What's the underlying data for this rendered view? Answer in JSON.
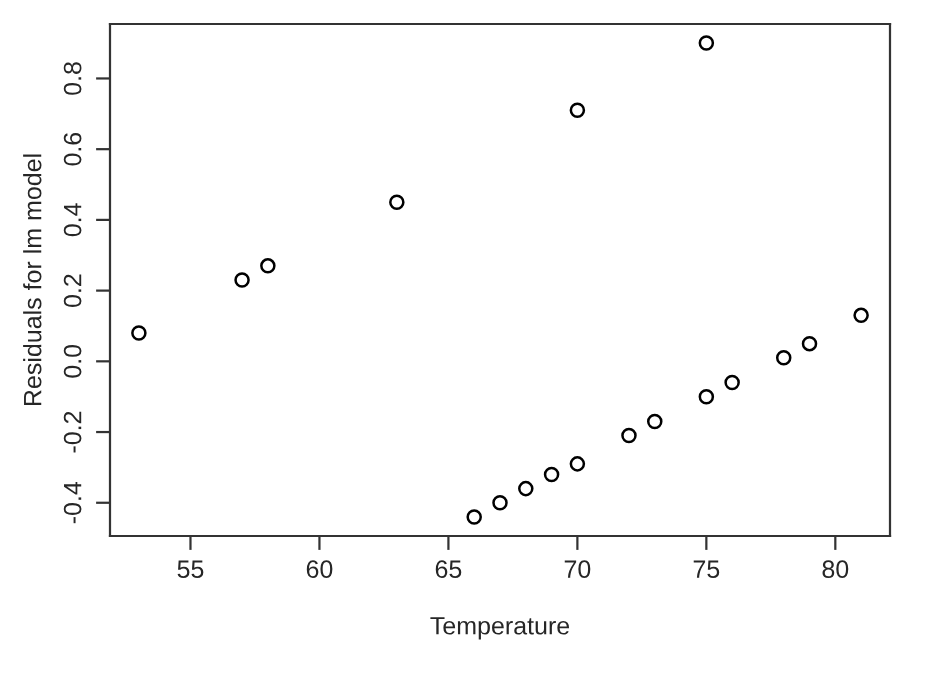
{
  "chart_data": {
    "type": "scatter",
    "xlabel": "Temperature",
    "ylabel": "Residuals for lm model",
    "x": [
      53,
      57,
      58,
      63,
      66,
      67,
      68,
      69,
      70,
      70,
      72,
      73,
      75,
      75,
      76,
      78,
      79,
      81
    ],
    "values": [
      0.08,
      0.23,
      0.27,
      0.45,
      -0.44,
      -0.4,
      -0.36,
      -0.32,
      -0.29,
      0.71,
      -0.21,
      -0.17,
      -0.1,
      0.9,
      -0.06,
      0.01,
      0.05,
      0.13
    ],
    "color": "#000000",
    "marker": "circle",
    "grid": false,
    "xlim": [
      51.88,
      82.12
    ],
    "ylim": [
      -0.494,
      0.954
    ],
    "xticks": [
      55,
      60,
      65,
      70,
      75,
      80
    ],
    "yticks": [
      {
        "value": -0.4,
        "label": "-0.4"
      },
      {
        "value": -0.2,
        "label": "-0.2"
      },
      {
        "value": 0.0,
        "label": "0.0"
      },
      {
        "value": 0.2,
        "label": "0.2"
      },
      {
        "value": 0.4,
        "label": "0.4"
      },
      {
        "value": 0.6,
        "label": "0.6"
      },
      {
        "value": 0.8,
        "label": "0.8"
      }
    ]
  }
}
